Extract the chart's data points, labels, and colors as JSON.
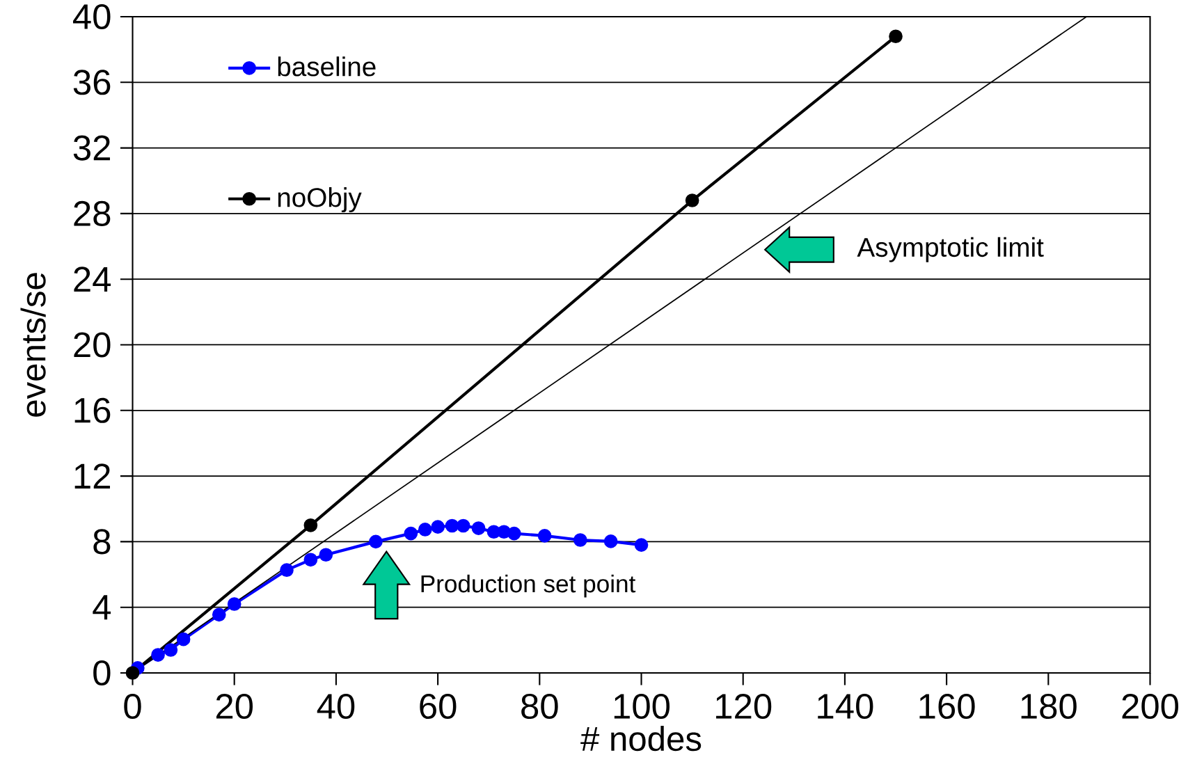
{
  "chart_data": {
    "type": "line",
    "xlabel": "# nodes",
    "ylabel": "events/se",
    "xlim": [
      0,
      200
    ],
    "ylim": [
      0,
      40
    ],
    "xticks": [
      0,
      20,
      40,
      60,
      80,
      100,
      120,
      140,
      160,
      180,
      200
    ],
    "yticks": [
      0,
      4,
      8,
      12,
      16,
      20,
      24,
      28,
      32,
      36,
      40
    ],
    "grid": "y",
    "legend": "top left",
    "marker": "circle",
    "line_style": "solid",
    "series": [
      {
        "name": "baseline",
        "color": "#0000ff",
        "x": [
          1,
          5,
          7.5,
          10,
          17,
          20,
          30.3,
          35,
          38,
          47.8,
          54.7,
          57.5,
          60,
          62.8,
          65,
          68,
          71,
          73,
          75,
          81,
          88,
          94,
          100
        ],
        "values": [
          0.3,
          1.1,
          1.4,
          2.05,
          3.55,
          4.2,
          6.27,
          6.9,
          7.2,
          8.0,
          8.5,
          8.74,
          8.9,
          8.97,
          8.97,
          8.82,
          8.6,
          8.6,
          8.5,
          8.36,
          8.1,
          8.02,
          7.8
        ]
      },
      {
        "name": "noObjy",
        "color": "#000000",
        "x": [
          0,
          35,
          110,
          150
        ],
        "values": [
          0,
          9.0,
          28.8,
          38.8
        ]
      },
      {
        "type": "line",
        "color": "#000000",
        "marker": "none",
        "x": [
          0,
          187.5
        ],
        "values": [
          0,
          40
        ]
      }
    ],
    "annotations": [
      "Asymptotic limit",
      "Production set point"
    ]
  }
}
